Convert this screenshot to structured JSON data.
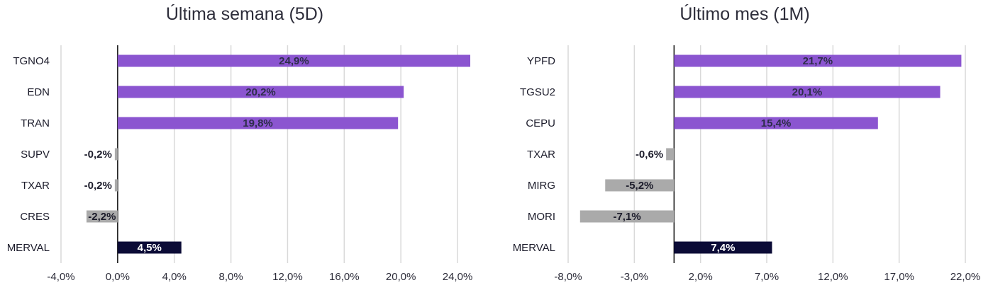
{
  "chart_data": [
    {
      "type": "bar",
      "orientation": "horizontal",
      "title": "Última semana (5D)",
      "categories": [
        "TGNO4",
        "EDN",
        "TRAN",
        "SUPV",
        "TXAR",
        "CRES",
        "MERVAL"
      ],
      "values": [
        24.9,
        20.2,
        19.8,
        -0.2,
        -0.2,
        -2.2,
        4.5
      ],
      "value_labels": [
        "24,9%",
        "20,2%",
        "19,8%",
        "-0,2%",
        "-0,2%",
        "-2,2%",
        "4,5%"
      ],
      "xlim": [
        -4.0,
        25.0
      ],
      "xticks": [
        -4,
        0,
        4,
        8,
        12,
        16,
        20,
        24
      ],
      "xtick_labels": [
        "-4,0%",
        "0,0%",
        "4,0%",
        "8,0%",
        "12,0%",
        "16,0%",
        "20,0%",
        "24,0%"
      ],
      "grid": "vertical",
      "colors": {
        "positive": "#8b55d0",
        "negative": "#aaaaaa",
        "benchmark": "#0b0b36"
      }
    },
    {
      "type": "bar",
      "orientation": "horizontal",
      "title": "Último mes (1M)",
      "categories": [
        "YPFD",
        "TGSU2",
        "CEPU",
        "TXAR",
        "MIRG",
        "MORI",
        "MERVAL"
      ],
      "values": [
        21.7,
        20.1,
        15.4,
        -0.6,
        -5.2,
        -7.1,
        7.4
      ],
      "value_labels": [
        "21,7%",
        "20,1%",
        "15,4%",
        "-0,6%",
        "-5,2%",
        "-7,1%",
        "7,4%"
      ],
      "xlim": [
        -8.0,
        22.0
      ],
      "xticks": [
        -8,
        -3,
        2,
        7,
        12,
        17,
        22
      ],
      "xtick_labels": [
        "-8,0%",
        "-3,0%",
        "2,0%",
        "7,0%",
        "12,0%",
        "17,0%",
        "22,0%"
      ],
      "grid": "vertical",
      "colors": {
        "positive": "#8b55d0",
        "negative": "#aaaaaa",
        "benchmark": "#0b0b36"
      }
    }
  ]
}
